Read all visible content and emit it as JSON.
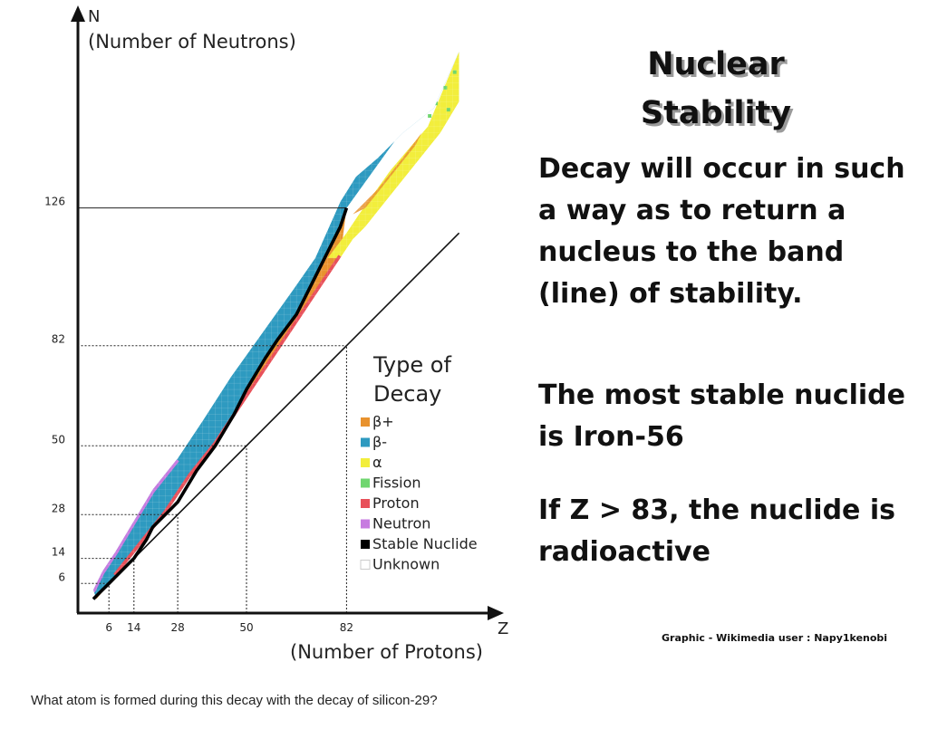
{
  "chart_data": {
    "type": "heatmap",
    "y_axis": {
      "letter": "N",
      "label": "(Number of Neutrons)",
      "ticks": [
        6,
        14,
        28,
        50,
        82,
        126
      ]
    },
    "x_axis": {
      "letter": "Z",
      "label": "(Number of Protons)",
      "ticks": [
        6,
        14,
        28,
        50,
        82
      ]
    },
    "xlim": [
      0,
      126
    ],
    "ylim": [
      0,
      180
    ],
    "grid": "magic numbers marked with reference lines",
    "reference_line": "N = Z",
    "legend": {
      "title_line1": "Type of",
      "title_line2": "Decay",
      "entries": [
        {
          "label": "β+",
          "color": "#e8922e"
        },
        {
          "label": "β-",
          "color": "#2e9ac0"
        },
        {
          "label": "α",
          "color": "#f2ee3c"
        },
        {
          "label": "Fission",
          "color": "#6fd66f"
        },
        {
          "label": "Proton",
          "color": "#e8505a"
        },
        {
          "label": "Neutron",
          "color": "#c77be0"
        },
        {
          "label": "Stable Nuclide",
          "color": "#000000"
        },
        {
          "label": "Unknown",
          "color": "#ffffff"
        }
      ]
    }
  },
  "slide": {
    "title_line1": "Nuclear",
    "title_line2": "Stability",
    "para1": "Decay will occur in such a way as to return a nucleus to the band (line) of stability.",
    "para2": "The most stable nuclide is Iron-56",
    "para3": "If Z > 83, the nuclide is radioactive",
    "credit": "Graphic - Wikimedia user : Napy1kenobi"
  },
  "question": "What atom is formed during this decay with the decay of silicon-29?"
}
